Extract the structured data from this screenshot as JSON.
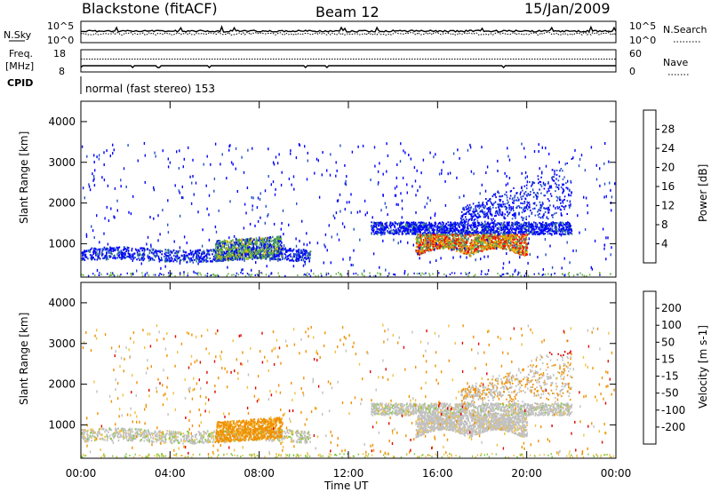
{
  "header": {
    "station": "Blackstone (fitACF)",
    "beam": "Beam 12",
    "date": "15/Jan/2009"
  },
  "top_panels": {
    "nsky": {
      "label": "N.Sky",
      "ticks": [
        "10^5",
        "10^0"
      ],
      "right_label": "N.Search",
      "right_ticks": [
        "10^5",
        "10^0"
      ]
    },
    "freq": {
      "label_top": "Freq.",
      "label_unit": "[MHz]",
      "ticks": [
        "18",
        "8"
      ],
      "right_label": "Nave",
      "right_ticks": [
        "60",
        "0"
      ]
    },
    "cpid": {
      "label": "CPID",
      "value": "normal (fast stereo) 153"
    }
  },
  "chart_data": [
    {
      "type": "heatmap",
      "name": "power",
      "ylabel": "Slant Range [km]",
      "ylim": [
        180,
        4500
      ],
      "yticks": [
        "1000",
        "2000",
        "3000",
        "4000"
      ],
      "xticks": [
        "00:00",
        "04:00",
        "08:00",
        "12:00",
        "16:00",
        "20:00",
        "00:00"
      ],
      "colorbar": {
        "label": "Power [dB]",
        "ticks": [
          "28",
          "24",
          "20",
          "16",
          "12",
          "8",
          "4"
        ],
        "colors": [
          "#ff0000",
          "#f05000",
          "#f09000",
          "#e8c000",
          "#60b040",
          "#3f8f70",
          "#2050c8",
          "#0000ff"
        ]
      }
    },
    {
      "type": "heatmap",
      "name": "velocity",
      "ylabel": "Slant Range [km]",
      "ylim": [
        180,
        4500
      ],
      "yticks": [
        "1000",
        "2000",
        "3000",
        "4000"
      ],
      "xticks": [
        "00:00",
        "04:00",
        "08:00",
        "12:00",
        "16:00",
        "20:00",
        "00:00"
      ],
      "xlabel": "Time UT",
      "colorbar": {
        "label": "Velocity [m s-1]",
        "ticks": [
          "200",
          "100",
          "50",
          "15",
          "-15",
          "-50",
          "-100",
          "-200"
        ],
        "colors": [
          "#2233aa",
          "#2f6ea0",
          "#2f9a6a",
          "#80c840",
          "#c0c0c0",
          "#f0c040",
          "#f09000",
          "#f05000",
          "#e00000"
        ]
      }
    }
  ]
}
